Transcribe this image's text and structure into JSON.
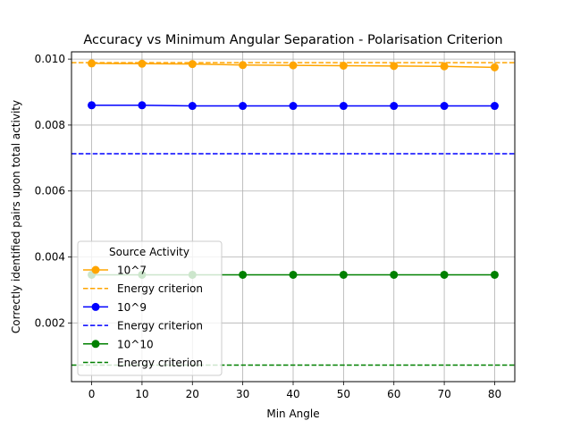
{
  "chart_data": {
    "type": "line",
    "title": "Accuracy vs Minimum Angular Separation - Polarisation Criterion",
    "xlabel": "Min Angle",
    "ylabel": "Correctly identified pairs upon total activity",
    "x": [
      0,
      10,
      20,
      30,
      40,
      50,
      60,
      70,
      80
    ],
    "xlim": [
      -4,
      84
    ],
    "ylim": [
      0.00022,
      0.01022
    ],
    "xticks": [
      0,
      10,
      20,
      30,
      40,
      50,
      60,
      70,
      80
    ],
    "yticks": [
      0.002,
      0.004,
      0.006,
      0.008,
      0.01
    ],
    "ytick_labels": [
      "0.002",
      "0.004",
      "0.006",
      "0.008",
      "0.010"
    ],
    "grid": true,
    "legend": {
      "title": "Source Activity",
      "placement": "lower-left"
    },
    "series": [
      {
        "name": "10^7",
        "style": "line-markers",
        "color": "#ffa500",
        "values": [
          0.00987,
          0.00986,
          0.00985,
          0.00982,
          0.00981,
          0.0098,
          0.00979,
          0.00978,
          0.00975
        ]
      },
      {
        "name": "Energy criterion",
        "style": "dashed",
        "color": "#ffa500",
        "value": 0.00989
      },
      {
        "name": "10^9",
        "style": "line-markers",
        "color": "#0000ff",
        "values": [
          0.0086,
          0.0086,
          0.00858,
          0.00858,
          0.00858,
          0.00858,
          0.00858,
          0.00858,
          0.00858
        ]
      },
      {
        "name": "Energy criterion",
        "style": "dashed",
        "color": "#0000ff",
        "value": 0.00713
      },
      {
        "name": "10^10",
        "style": "line-markers",
        "color": "#008000",
        "values": [
          0.00346,
          0.00346,
          0.00346,
          0.00346,
          0.00346,
          0.00346,
          0.00346,
          0.00346,
          0.00346
        ]
      },
      {
        "name": "Energy criterion",
        "style": "dashed",
        "color": "#008000",
        "value": 0.00072
      }
    ]
  }
}
